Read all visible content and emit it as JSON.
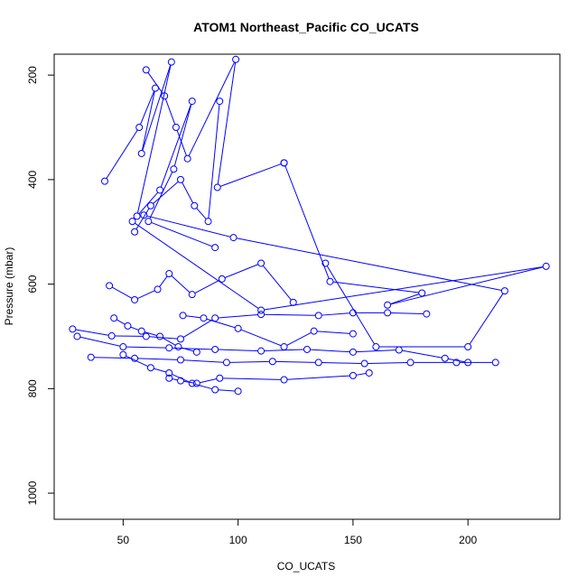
{
  "chart_data": {
    "type": "scatter",
    "title": "ATOM1 Northeast_Pacific CO_UCATS",
    "xlabel": "CO_UCATS",
    "ylabel": "Pressure (mbar)",
    "xlim": [
      20,
      240
    ],
    "ylim": [
      1050,
      160
    ],
    "y_reversed": true,
    "x_ticks": [
      50,
      100,
      150,
      200
    ],
    "y_ticks": [
      200,
      400,
      600,
      800,
      1000
    ],
    "grid": false,
    "legend": "none",
    "series_color": "#0000ff",
    "marker": "open-circle-with-lines",
    "series": [
      {
        "x": [
          42,
          57,
          64,
          58,
          71,
          56,
          66,
          80,
          72,
          61,
          90
        ],
        "y": [
          403,
          300,
          225,
          350,
          175,
          470,
          420,
          250,
          380,
          480,
          530
        ]
      },
      {
        "x": [
          60,
          68,
          73,
          78,
          99,
          91,
          120
        ],
        "y": [
          190,
          240,
          300,
          360,
          170,
          415,
          368
        ]
      },
      {
        "x": [
          55,
          62,
          75,
          81,
          87,
          92
        ],
        "y": [
          500,
          450,
          400,
          450,
          480,
          250
        ]
      },
      {
        "x": [
          120,
          140,
          180,
          165,
          234,
          110,
          54
        ],
        "y": [
          368,
          595,
          617,
          640,
          566,
          650,
          480
        ]
      },
      {
        "x": [
          59,
          98,
          216,
          200,
          160,
          138
        ],
        "y": [
          468,
          511,
          613,
          720,
          720,
          560
        ]
      },
      {
        "x": [
          44,
          55,
          65,
          70,
          80,
          93,
          110,
          124
        ],
        "y": [
          603,
          630,
          610,
          580,
          620,
          590,
          560,
          635
        ]
      },
      {
        "x": [
          28,
          45,
          60,
          75,
          90,
          110,
          135,
          150,
          165,
          182
        ],
        "y": [
          686,
          699,
          700,
          705,
          665,
          658,
          660,
          655,
          655,
          657
        ]
      },
      {
        "x": [
          30,
          50,
          70,
          90,
          110,
          130,
          150,
          170,
          190,
          200
        ],
        "y": [
          700,
          720,
          722,
          725,
          728,
          725,
          730,
          726,
          742,
          750
        ]
      },
      {
        "x": [
          36,
          55,
          75,
          95,
          115,
          135,
          155,
          175,
          195,
          212
        ],
        "y": [
          740,
          742,
          745,
          750,
          748,
          750,
          752,
          750,
          750,
          750
        ]
      },
      {
        "x": [
          50,
          62,
          70,
          80,
          90,
          100
        ],
        "y": [
          735,
          760,
          770,
          790,
          802,
          805
        ]
      },
      {
        "x": [
          70,
          75,
          82,
          92,
          120,
          150,
          157
        ],
        "y": [
          780,
          785,
          790,
          780,
          783,
          775,
          770
        ]
      },
      {
        "x": [
          76,
          85,
          100,
          120,
          133,
          150
        ],
        "y": [
          660,
          665,
          685,
          720,
          690,
          695
        ]
      },
      {
        "x": [
          46,
          52,
          58,
          66,
          74,
          82
        ],
        "y": [
          665,
          680,
          690,
          700,
          720,
          730
        ]
      }
    ]
  }
}
